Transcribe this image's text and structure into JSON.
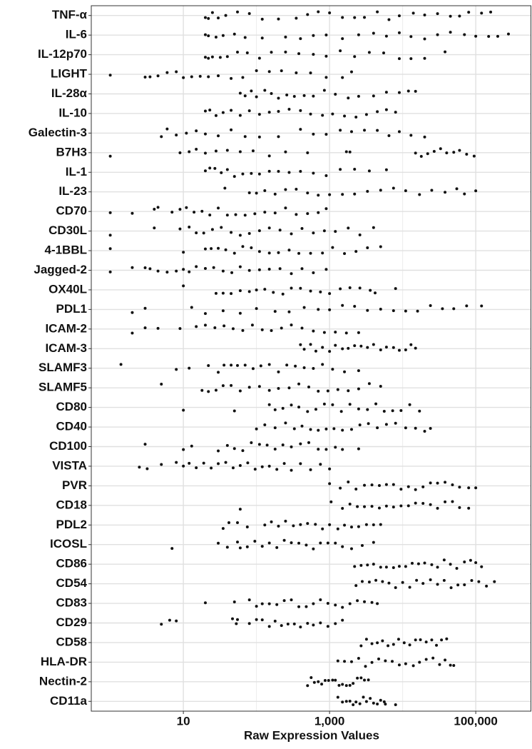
{
  "chart_data": {
    "type": "strip",
    "xlabel": "Raw Expression Values",
    "xscale": "log",
    "xlim": [
      0.55,
      575000
    ],
    "xticks": [
      10,
      {
        "value": 1000,
        "label": "1,000"
      },
      {
        "value": 100000,
        "label": "100,000"
      }
    ],
    "x_minor_grid": [
      100,
      10000
    ],
    "grid": true,
    "color": "#111111",
    "categories": [
      "TNF-α",
      "IL-6",
      "IL-12p70",
      "LIGHT",
      "IL-28α",
      "IL-10",
      "Galectin-3",
      "B7H3",
      "IL-1",
      "IL-23",
      "CD70",
      "CD30L",
      "4-1BBL",
      "Jagged-2",
      "OX40L",
      "PDL1",
      "ICAM-2",
      "ICAM-3",
      "SLAMF3",
      "SLAMF5",
      "CD80",
      "CD40",
      "CD100",
      "VISTA",
      "PVR",
      "CD18",
      "PDL2",
      "ICOSL",
      "CD86",
      "CD54",
      "CD83",
      "CD29",
      "CD58",
      "HLA-DR",
      "Nectin-2",
      "CD11a"
    ],
    "values": [
      [
        20,
        22,
        25,
        30,
        38,
        55,
        80,
        120,
        200,
        350,
        500,
        700,
        1000,
        1500,
        2200,
        3000,
        4500,
        6500,
        9000,
        14000,
        20000,
        30000,
        45000,
        60000,
        80000,
        120000,
        160000
      ],
      [
        20,
        22,
        28,
        35,
        50,
        70,
        120,
        250,
        400,
        600,
        900,
        1500,
        2500,
        4000,
        6000,
        9000,
        13000,
        20000,
        30000,
        45000,
        70000,
        100000,
        150000,
        200000,
        280000
      ],
      [
        20,
        22,
        25,
        32,
        40,
        55,
        75,
        110,
        160,
        250,
        380,
        600,
        900,
        1400,
        2200,
        3500,
        5500,
        9000,
        13000,
        20000,
        38000
      ],
      [
        1,
        3,
        3.5,
        4.5,
        6,
        8,
        10,
        13,
        17,
        22,
        30,
        45,
        65,
        100,
        150,
        220,
        350,
        550,
        900,
        1500,
        2000
      ],
      [
        60,
        70,
        85,
        100,
        130,
        160,
        200,
        260,
        330,
        450,
        600,
        850,
        1200,
        1800,
        2500,
        4000,
        6000,
        9000,
        12000,
        15000
      ],
      [
        20,
        23,
        28,
        35,
        45,
        60,
        80,
        110,
        150,
        200,
        280,
        400,
        550,
        800,
        1100,
        1600,
        2300,
        3200,
        4500,
        6000,
        8000
      ],
      [
        5,
        6,
        8,
        11,
        15,
        20,
        30,
        45,
        70,
        110,
        200,
        400,
        600,
        900,
        1400,
        2000,
        3000,
        4500,
        6500,
        9000,
        13000,
        20000
      ],
      [
        1,
        9,
        12,
        15,
        20,
        28,
        40,
        60,
        90,
        150,
        250,
        500,
        1700,
        1900,
        15000,
        18000,
        22000,
        27000,
        33000,
        40000,
        50000,
        60000,
        75000,
        95000
      ],
      [
        20,
        23,
        27,
        33,
        40,
        50,
        65,
        85,
        110,
        150,
        200,
        280,
        400,
        600,
        900,
        1400,
        2200,
        3500,
        6000
      ],
      [
        37,
        80,
        100,
        130,
        180,
        250,
        350,
        500,
        700,
        1000,
        1500,
        2200,
        3300,
        5000,
        7500,
        11000,
        17000,
        25000,
        38000,
        55000,
        70000,
        100000
      ],
      [
        1,
        2,
        4,
        4.5,
        7,
        9,
        11,
        14,
        18,
        23,
        30,
        40,
        52,
        70,
        95,
        130,
        180,
        250,
        350,
        500,
        700,
        900
      ],
      [
        1,
        4,
        9,
        12,
        15,
        19,
        25,
        33,
        45,
        60,
        80,
        110,
        150,
        210,
        300,
        420,
        600,
        850,
        1200,
        1800,
        2600,
        4000
      ],
      [
        1,
        10,
        20,
        24,
        30,
        38,
        50,
        65,
        85,
        110,
        150,
        200,
        280,
        380,
        550,
        800,
        1100,
        1600,
        2300,
        3300,
        5000
      ],
      [
        1,
        2,
        3,
        3.5,
        4.5,
        6,
        8,
        10,
        12,
        15,
        20,
        26,
        35,
        46,
        60,
        80,
        110,
        150,
        210,
        300,
        420,
        600,
        900
      ],
      [
        10,
        28,
        35,
        45,
        60,
        80,
        100,
        130,
        170,
        230,
        300,
        400,
        550,
        750,
        1000,
        1400,
        1900,
        2600,
        3600,
        4200,
        8000
      ],
      [
        2,
        3,
        13,
        20,
        35,
        60,
        100,
        180,
        280,
        450,
        700,
        1000,
        1500,
        2200,
        3300,
        5000,
        7500,
        11000,
        16000,
        24000,
        35000,
        50000,
        75000,
        120000
      ],
      [
        2,
        3,
        4.5,
        9,
        15,
        20,
        27,
        36,
        48,
        65,
        88,
        120,
        160,
        220,
        300,
        420,
        600,
        850,
        1200,
        1700,
        2500
      ],
      [
        400,
        450,
        550,
        650,
        800,
        1000,
        1200,
        1500,
        1800,
        2200,
        2700,
        3300,
        4000,
        5000,
        6000,
        7500,
        9000,
        11000,
        13000,
        15000
      ],
      [
        1.4,
        8,
        12,
        22,
        30,
        36,
        45,
        55,
        70,
        90,
        115,
        150,
        200,
        260,
        340,
        450,
        600,
        800,
        1100,
        1600,
        2500
      ],
      [
        5,
        18,
        22,
        28,
        35,
        45,
        60,
        80,
        110,
        150,
        200,
        280,
        380,
        520,
        700,
        950,
        1300,
        1800,
        2500,
        3500,
        5000
      ],
      [
        10,
        50,
        150,
        180,
        230,
        300,
        380,
        500,
        650,
        850,
        1100,
        1450,
        1900,
        2500,
        3300,
        4300,
        5600,
        7300,
        9500,
        12500,
        17000
      ],
      [
        100,
        130,
        180,
        250,
        330,
        420,
        550,
        700,
        900,
        1150,
        1500,
        2000,
        2600,
        3400,
        4500,
        6000,
        8000,
        11000,
        15000,
        20000,
        24000
      ],
      [
        3,
        10,
        13,
        30,
        40,
        50,
        65,
        85,
        110,
        140,
        180,
        230,
        300,
        400,
        520,
        700,
        900,
        1200,
        1500,
        2500
      ],
      [
        2.5,
        3.2,
        5,
        8,
        10,
        12,
        15,
        19,
        24,
        30,
        38,
        48,
        60,
        76,
        96,
        120,
        150,
        190,
        240,
        300,
        400,
        550,
        750,
        1000
      ],
      [
        1000,
        1400,
        1800,
        2300,
        3000,
        3800,
        4800,
        6000,
        7500,
        9500,
        12000,
        15000,
        19000,
        24000,
        30000,
        38000,
        48000,
        60000,
        80000,
        100000
      ],
      [
        60,
        1050,
        1500,
        1900,
        2400,
        3000,
        3800,
        4800,
        6000,
        7500,
        9500,
        12000,
        15000,
        19000,
        24000,
        30000,
        38000,
        48000,
        60000,
        80000
      ],
      [
        35,
        42,
        55,
        75,
        130,
        160,
        200,
        250,
        320,
        400,
        500,
        640,
        800,
        1000,
        1300,
        1600,
        2000,
        2500,
        3200,
        4000,
        5000
      ],
      [
        7,
        30,
        40,
        55,
        60,
        75,
        95,
        120,
        150,
        190,
        240,
        300,
        380,
        480,
        600,
        750,
        950,
        1200,
        1500,
        2000,
        2800,
        4000
      ],
      [
        2200,
        2700,
        3300,
        4000,
        5000,
        6000,
        7500,
        9000,
        11000,
        13500,
        16500,
        20000,
        25000,
        30000,
        37000,
        45000,
        55000,
        70000,
        85000,
        100000,
        120000
      ],
      [
        2300,
        2800,
        3500,
        4300,
        5300,
        6500,
        8000,
        10000,
        12500,
        15500,
        19000,
        24000,
        30000,
        37000,
        46000,
        57000,
        70000,
        88000,
        110000,
        140000,
        180000
      ],
      [
        20,
        50,
        80,
        100,
        120,
        150,
        190,
        240,
        300,
        380,
        480,
        600,
        750,
        950,
        1200,
        1500,
        1900,
        2400,
        3000,
        3800,
        4500
      ],
      [
        5,
        6.5,
        8,
        47,
        53,
        55,
        80,
        100,
        120,
        150,
        180,
        220,
        270,
        330,
        400,
        500,
        600,
        750,
        950,
        1200,
        1500
      ],
      [
        2700,
        3200,
        3800,
        4500,
        5300,
        6300,
        7500,
        8800,
        10500,
        12500,
        15000,
        17500,
        21000,
        25000,
        29000,
        34000,
        40000
      ],
      [
        1300,
        1600,
        2000,
        2500,
        3100,
        3800,
        4700,
        5800,
        7200,
        9000,
        11000,
        14000,
        17000,
        21000,
        26000,
        32000,
        38000,
        45000,
        50000
      ],
      [
        500,
        560,
        620,
        700,
        780,
        870,
        970,
        1100,
        1200,
        1350,
        1500,
        1700,
        1900,
        2100,
        2400,
        2700,
        3000,
        3400
      ],
      [
        1300,
        1500,
        1700,
        1900,
        2100,
        2300,
        2600,
        2900,
        3200,
        3600,
        4000,
        4500,
        5000,
        5600,
        5800,
        8000
      ]
    ]
  }
}
